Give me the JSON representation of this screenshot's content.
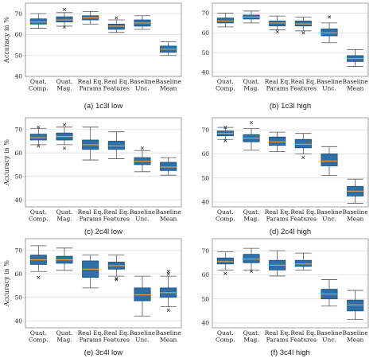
{
  "colors": {
    "box_fill": "#2f6fa8",
    "box_edge": "#1c4f7a",
    "median": "#e8a33d",
    "whisker": "#555555",
    "grid": "#dddddd",
    "flier": "#333333"
  },
  "chart_data": [
    {
      "type": "box",
      "caption": "(a) 1c3l low",
      "ylabel": "Accuracy in %",
      "ylim": [
        40,
        75
      ],
      "yticks": [
        40,
        50,
        60,
        70
      ],
      "categories": [
        "Quat.\nComp.",
        "Quat.\nMag.",
        "Real Eq.\nParams",
        "Real Eq.\nFeatures",
        "Baseline\nUnc.",
        "Baseline\nMean"
      ],
      "boxes": [
        {
          "whislo": 63,
          "q1": 65,
          "med": 66,
          "q3": 67.5,
          "whishi": 70,
          "fliers": []
        },
        {
          "whislo": 64,
          "q1": 66,
          "med": 67,
          "q3": 68.5,
          "whishi": 70.5,
          "fliers": [
            72,
            63.5
          ]
        },
        {
          "whislo": 65,
          "q1": 67,
          "med": 68,
          "q3": 69,
          "whishi": 71,
          "fliers": []
        },
        {
          "whislo": 61,
          "q1": 62.5,
          "med": 64,
          "q3": 65,
          "whishi": 67,
          "fliers": [
            68
          ]
        },
        {
          "whislo": 62.5,
          "q1": 64,
          "med": 65.5,
          "q3": 67,
          "whishi": 69,
          "fliers": []
        },
        {
          "whislo": 50,
          "q1": 51.5,
          "med": 53,
          "q3": 54.5,
          "whishi": 56.5,
          "fliers": []
        }
      ]
    },
    {
      "type": "box",
      "caption": "(b) 1c3l high",
      "ylabel": "",
      "ylim": [
        38,
        75
      ],
      "yticks": [
        40,
        50,
        60,
        70
      ],
      "categories": [
        "Quat.\nComp.",
        "Quat.\nMag.",
        "Real Eq.\nParams",
        "Real Eq.\nFeatures",
        "Baseline\nUnc.",
        "Baseline\nMean"
      ],
      "boxes": [
        {
          "whislo": 63,
          "q1": 65,
          "med": 66,
          "q3": 67.5,
          "whishi": 70,
          "fliers": []
        },
        {
          "whislo": 65,
          "q1": 67,
          "med": 68,
          "q3": 69,
          "whishi": 71,
          "fliers": []
        },
        {
          "whislo": 61.5,
          "q1": 63.5,
          "med": 65,
          "q3": 66,
          "whishi": 68.5,
          "fliers": [
            60.5
          ]
        },
        {
          "whislo": 61,
          "q1": 63.5,
          "med": 64.5,
          "q3": 66,
          "whishi": 68,
          "fliers": [
            60
          ]
        },
        {
          "whislo": 55,
          "q1": 58.5,
          "med": 60,
          "q3": 62,
          "whishi": 65,
          "fliers": [
            68
          ]
        },
        {
          "whislo": 43,
          "q1": 45.5,
          "med": 47,
          "q3": 48.5,
          "whishi": 51.5,
          "fliers": []
        }
      ]
    },
    {
      "type": "box",
      "caption": "(c) 2c4l low",
      "ylabel": "Accuracy in %",
      "ylim": [
        37,
        75
      ],
      "yticks": [
        40,
        50,
        60,
        70
      ],
      "categories": [
        "Quat.\nComp.",
        "Quat.\nMag.",
        "Real Eq.\nParams",
        "Real Eq.\nFeatures",
        "Baseline\nUnc.",
        "Baseline\nMean"
      ],
      "boxes": [
        {
          "whislo": 63.5,
          "q1": 65.5,
          "med": 66.5,
          "q3": 68,
          "whishi": 70.5,
          "fliers": [
            71,
            63
          ]
        },
        {
          "whislo": 63.5,
          "q1": 65.5,
          "med": 67,
          "q3": 68.5,
          "whishi": 71,
          "fliers": [
            72,
            62
          ]
        },
        {
          "whislo": 57,
          "q1": 61.5,
          "med": 63.5,
          "q3": 65.5,
          "whishi": 71,
          "fliers": []
        },
        {
          "whislo": 57.5,
          "q1": 61.5,
          "med": 63,
          "q3": 65,
          "whishi": 69,
          "fliers": []
        },
        {
          "whislo": 52,
          "q1": 55,
          "med": 56.5,
          "q3": 58,
          "whishi": 61,
          "fliers": [
            62
          ]
        },
        {
          "whislo": 50.5,
          "q1": 52.5,
          "med": 54,
          "q3": 56,
          "whishi": 58,
          "fliers": []
        }
      ]
    },
    {
      "type": "box",
      "caption": "(d) 2c4l high",
      "ylabel": "",
      "ylim": [
        38,
        75
      ],
      "yticks": [
        40,
        50,
        60,
        70
      ],
      "categories": [
        "Quat.\nComp.",
        "Quat.\nMag.",
        "Real Eq.\nParams",
        "Real Eq.\nFeatures",
        "Baseline\nUnc.",
        "Baseline\nMean"
      ],
      "boxes": [
        {
          "whislo": 66,
          "q1": 67.5,
          "med": 68.5,
          "q3": 69.5,
          "whishi": 71,
          "fliers": [
            71,
            65.5
          ]
        },
        {
          "whislo": 61.5,
          "q1": 65,
          "med": 66.5,
          "q3": 68,
          "whishi": 70.5,
          "fliers": [
            73
          ]
        },
        {
          "whislo": 61,
          "q1": 63.5,
          "med": 65,
          "q3": 67,
          "whishi": 69,
          "fliers": []
        },
        {
          "whislo": 60,
          "q1": 62.5,
          "med": 64,
          "q3": 66,
          "whishi": 68.5,
          "fliers": [
            58.5
          ]
        },
        {
          "whislo": 51,
          "q1": 55,
          "med": 57,
          "q3": 60,
          "whishi": 63,
          "fliers": []
        },
        {
          "whislo": 39.5,
          "q1": 42.5,
          "med": 44.5,
          "q3": 46.5,
          "whishi": 49.5,
          "fliers": []
        }
      ]
    },
    {
      "type": "box",
      "caption": "(e) 3c4l low",
      "ylabel": "Accuracy in %",
      "ylim": [
        37,
        75
      ],
      "yticks": [
        40,
        50,
        60,
        70
      ],
      "categories": [
        "Quat.\nComp.",
        "Quat.\nMag.",
        "Real Eq.\nParams",
        "Real Eq.\nFeatures",
        "Baseline\nUnc.",
        "Baseline\nMean"
      ],
      "boxes": [
        {
          "whislo": 61,
          "q1": 64,
          "med": 66,
          "q3": 68,
          "whishi": 72,
          "fliers": [
            58.5
          ]
        },
        {
          "whislo": 61.5,
          "q1": 64.5,
          "med": 66,
          "q3": 67.5,
          "whishi": 71,
          "fliers": []
        },
        {
          "whislo": 54,
          "q1": 58.5,
          "med": 62,
          "q3": 65.5,
          "whishi": 68,
          "fliers": []
        },
        {
          "whislo": 59,
          "q1": 62,
          "med": 63.5,
          "q3": 65,
          "whishi": 68,
          "fliers": [
            58,
            57.5
          ]
        },
        {
          "whislo": 42,
          "q1": 48.5,
          "med": 51,
          "q3": 54,
          "whishi": 59,
          "fliers": []
        },
        {
          "whislo": 46,
          "q1": 50,
          "med": 52,
          "q3": 54,
          "whishi": 59,
          "fliers": [
            61,
            60,
            44.5
          ]
        }
      ]
    },
    {
      "type": "box",
      "caption": "(f) 3c4l high",
      "ylabel": "",
      "ylim": [
        38,
        75
      ],
      "yticks": [
        40,
        50,
        60,
        70
      ],
      "categories": [
        "Quat.\nComp.",
        "Quat.\nMag.",
        "Real Eq.\nParams",
        "Real Eq.\nFeatures",
        "Baseline\nUnc.",
        "Baseline\nMean"
      ],
      "boxes": [
        {
          "whislo": 62,
          "q1": 64.5,
          "med": 65.5,
          "q3": 67,
          "whishi": 69.5,
          "fliers": [
            60.5
          ]
        },
        {
          "whislo": 62,
          "q1": 65,
          "med": 66.5,
          "q3": 68.5,
          "whishi": 71,
          "fliers": [
            61.5
          ]
        },
        {
          "whislo": 59.5,
          "q1": 62,
          "med": 64,
          "q3": 66,
          "whishi": 70,
          "fliers": []
        },
        {
          "whislo": 62,
          "q1": 63.5,
          "med": 64.5,
          "q3": 66,
          "whishi": 69,
          "fliers": []
        },
        {
          "whislo": 47,
          "q1": 50,
          "med": 52,
          "q3": 54,
          "whishi": 58,
          "fliers": []
        },
        {
          "whislo": 41.5,
          "q1": 45,
          "med": 47.5,
          "q3": 49.5,
          "whishi": 53.5,
          "fliers": []
        }
      ]
    }
  ]
}
